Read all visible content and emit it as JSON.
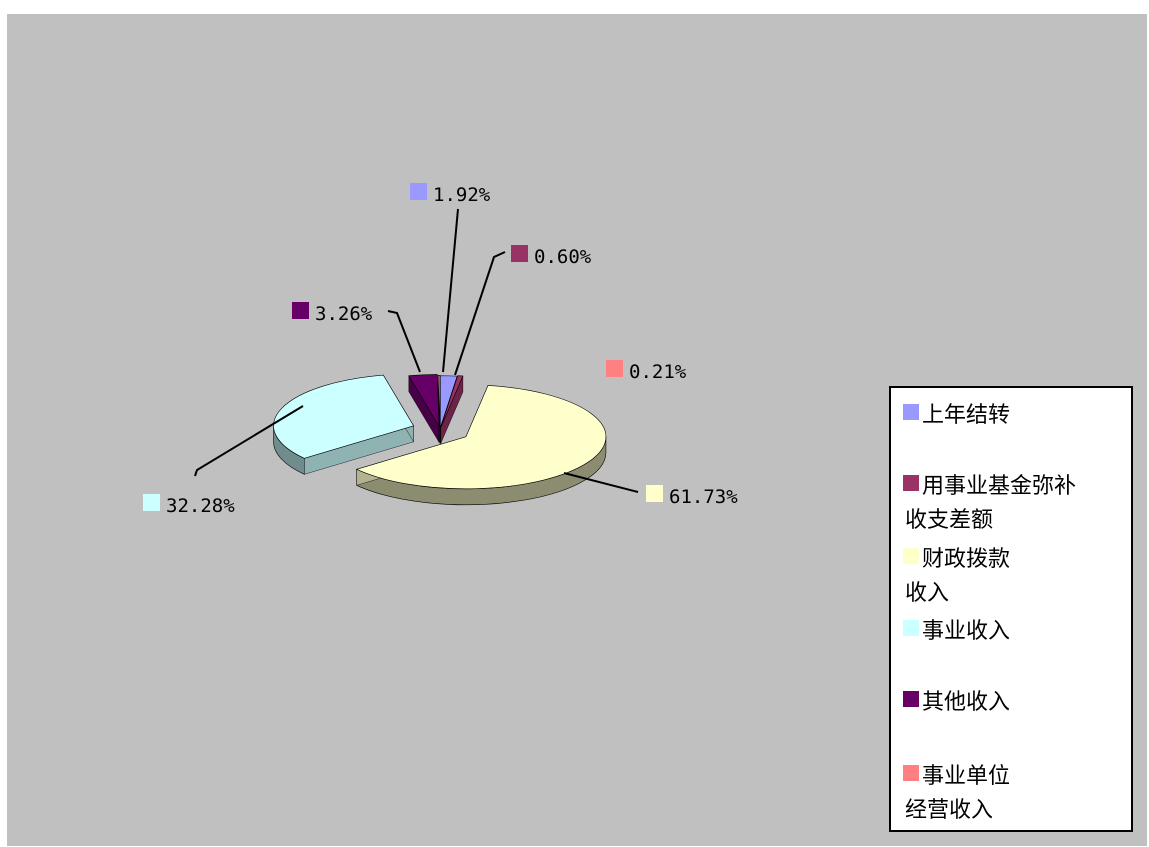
{
  "chart_data": {
    "type": "pie",
    "style": "3d-exploded",
    "background_color": "#c0c0c0",
    "legend_position": "right",
    "slices": [
      {
        "name": "上年结转",
        "value": 1.92,
        "label": "1.92%",
        "color": "#9999ff",
        "legend_lines": [
          "上年结转"
        ]
      },
      {
        "name": "用事业基金弥补收支差额",
        "value": 0.6,
        "label": "0.60%",
        "color": "#993366",
        "legend_lines": [
          "用事业基金弥补",
          "收支差额"
        ]
      },
      {
        "name": "财政拨款收入",
        "value": 61.73,
        "label": "61.73%",
        "color": "#ffffcc",
        "legend_lines": [
          "财政拨款",
          "收入"
        ]
      },
      {
        "name": "事业收入",
        "value": 32.28,
        "label": "32.28%",
        "color": "#ccffff",
        "legend_lines": [
          "事业收入"
        ]
      },
      {
        "name": "其他收入",
        "value": 3.26,
        "label": "3.26%",
        "color": "#660066",
        "legend_lines": [
          "其他收入"
        ]
      },
      {
        "name": "事业单位经营收入",
        "value": 0.21,
        "label": "0.21%",
        "color": "#ff8080",
        "legend_lines": [
          "事业单位",
          "经营收入"
        ]
      }
    ]
  }
}
